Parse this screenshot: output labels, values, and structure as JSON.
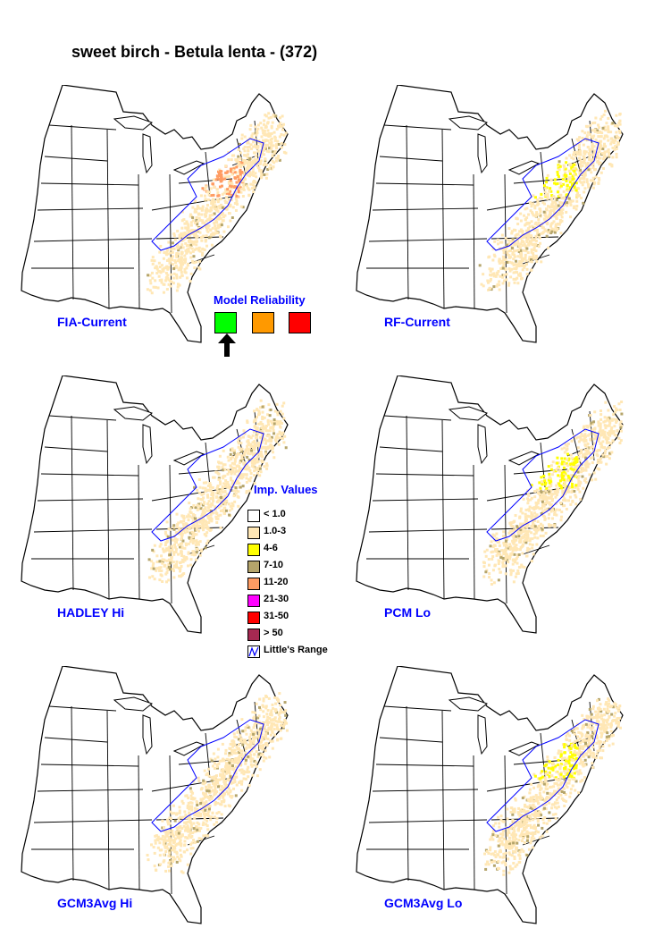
{
  "title": "sweet birch - Betula lenta - (372)",
  "panels": [
    {
      "label": "FIA-Current"
    },
    {
      "label": "RF-Current"
    },
    {
      "label": "HADLEY Hi"
    },
    {
      "label": "PCM Lo"
    },
    {
      "label": "GCM3Avg Hi"
    },
    {
      "label": "GCM3Avg Lo"
    }
  ],
  "model_reliability": {
    "title": "Model Reliability",
    "levels": [
      {
        "color": "#00ff00",
        "selected": true
      },
      {
        "color": "#ff9900",
        "selected": false
      },
      {
        "color": "#ff0000",
        "selected": false
      }
    ]
  },
  "legend": {
    "title": "Imp. Values",
    "items": [
      {
        "label": "< 1.0",
        "color": "#ffffff"
      },
      {
        "label": "1.0-3",
        "color": "#ffe7b5"
      },
      {
        "label": "4-6",
        "color": "#ffff00"
      },
      {
        "label": "7-10",
        "color": "#b5a56b"
      },
      {
        "label": "11-20",
        "color": "#ff9c63"
      },
      {
        "label": "21-30",
        "color": "#ff00ff"
      },
      {
        "label": "31-50",
        "color": "#ff0000"
      },
      {
        "label": "> 50",
        "color": "#a52952"
      },
      {
        "label": "Little's Range",
        "color": "#0000ff"
      }
    ]
  }
}
